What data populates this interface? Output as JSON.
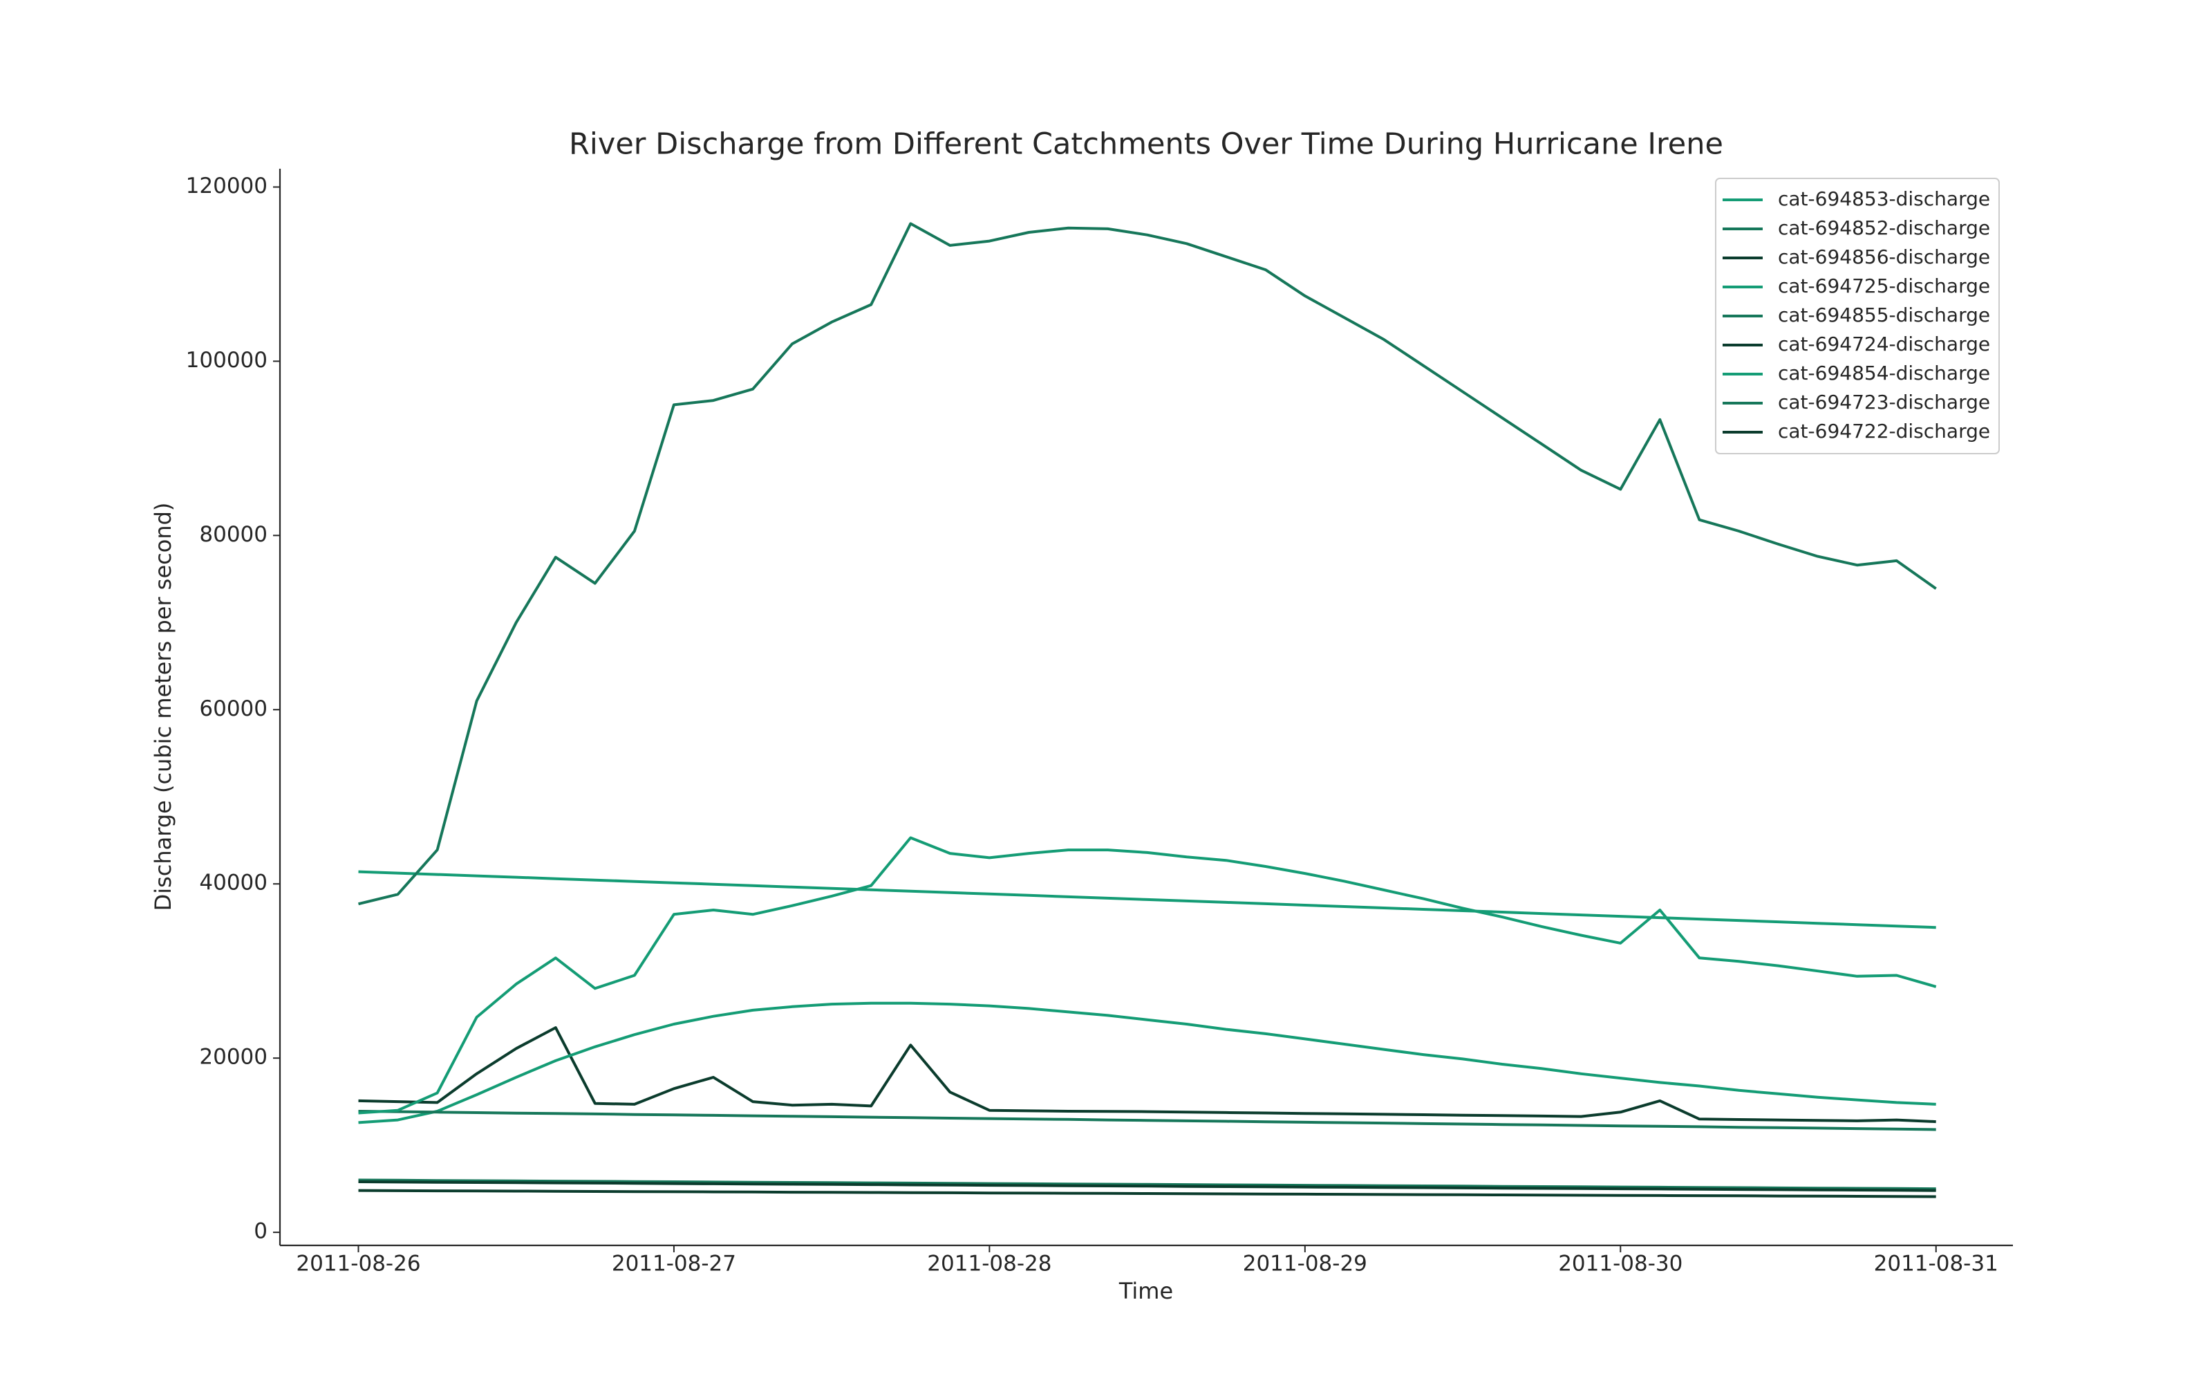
{
  "chart_data": {
    "type": "line",
    "title": "River Discharge from Different Catchments Over Time During Hurricane Irene",
    "xlabel": "Time",
    "ylabel": "Discharge (cubic meters per second)",
    "x": [
      "2011-08-26T00:00",
      "2011-08-26T03:00",
      "2011-08-26T06:00",
      "2011-08-26T09:00",
      "2011-08-26T12:00",
      "2011-08-26T15:00",
      "2011-08-26T18:00",
      "2011-08-26T21:00",
      "2011-08-27T00:00",
      "2011-08-27T03:00",
      "2011-08-27T06:00",
      "2011-08-27T09:00",
      "2011-08-27T12:00",
      "2011-08-27T15:00",
      "2011-08-27T18:00",
      "2011-08-27T21:00",
      "2011-08-28T00:00",
      "2011-08-28T03:00",
      "2011-08-28T06:00",
      "2011-08-28T09:00",
      "2011-08-28T12:00",
      "2011-08-28T15:00",
      "2011-08-28T18:00",
      "2011-08-28T21:00",
      "2011-08-29T00:00",
      "2011-08-29T03:00",
      "2011-08-29T06:00",
      "2011-08-29T09:00",
      "2011-08-29T12:00",
      "2011-08-29T15:00",
      "2011-08-29T18:00",
      "2011-08-29T21:00",
      "2011-08-30T00:00",
      "2011-08-30T03:00",
      "2011-08-30T06:00",
      "2011-08-30T09:00",
      "2011-08-30T12:00",
      "2011-08-30T15:00",
      "2011-08-30T18:00",
      "2011-08-30T21:00",
      "2011-08-31T00:00"
    ],
    "series": [
      {
        "name": "cat-694853-discharge",
        "color": "#149c75",
        "values": [
          41400,
          41240,
          41080,
          40920,
          40760,
          40600,
          40440,
          40280,
          40120,
          39960,
          39800,
          39640,
          39480,
          39320,
          39160,
          39000,
          38840,
          38680,
          38520,
          38360,
          38200,
          38040,
          37880,
          37720,
          37560,
          37400,
          37240,
          37080,
          36920,
          36760,
          36600,
          36440,
          36280,
          36120,
          35960,
          35800,
          35640,
          35480,
          35320,
          35160,
          35000
        ]
      },
      {
        "name": "cat-694852-discharge",
        "color": "#16775a",
        "values": [
          37700,
          38800,
          43900,
          61000,
          70000,
          77500,
          74500,
          80500,
          95000,
          95500,
          96800,
          102000,
          104500,
          106500,
          115800,
          113300,
          113800,
          114800,
          115300,
          115200,
          114500,
          113500,
          112000,
          110500,
          107500,
          105000,
          102500,
          99500,
          96500,
          93500,
          90500,
          87500,
          85300,
          93300,
          81800,
          80500,
          79000,
          77600,
          76600,
          77100,
          73900
        ]
      },
      {
        "name": "cat-694856-discharge",
        "color": "#0b3c2d",
        "values": [
          15100,
          15000,
          14900,
          18200,
          21100,
          23500,
          14800,
          14700,
          16500,
          17800,
          15000,
          14600,
          14700,
          14500,
          21500,
          16100,
          14000,
          13950,
          13900,
          13880,
          13850,
          13800,
          13750,
          13700,
          13650,
          13600,
          13550,
          13500,
          13450,
          13400,
          13350,
          13300,
          13800,
          15100,
          13000,
          12950,
          12900,
          12850,
          12800,
          12900,
          12700
        ]
      },
      {
        "name": "cat-694725-discharge",
        "color": "#149c75",
        "values": [
          12600,
          12900,
          13900,
          15800,
          17800,
          19700,
          21300,
          22700,
          23900,
          24800,
          25500,
          25900,
          26200,
          26300,
          26300,
          26200,
          26000,
          25700,
          25300,
          24900,
          24400,
          23900,
          23300,
          22800,
          22200,
          21600,
          21000,
          20400,
          19900,
          19300,
          18800,
          18200,
          17700,
          17200,
          16800,
          16300,
          15900,
          15500,
          15200,
          14900,
          14700
        ]
      },
      {
        "name": "cat-694855-discharge",
        "color": "#16775a",
        "values": [
          13900,
          13850,
          13800,
          13740,
          13690,
          13640,
          13590,
          13530,
          13480,
          13430,
          13380,
          13320,
          13270,
          13220,
          13170,
          13110,
          13060,
          13010,
          12960,
          12900,
          12850,
          12800,
          12750,
          12690,
          12640,
          12590,
          12540,
          12480,
          12430,
          12380,
          12330,
          12270,
          12220,
          12170,
          12120,
          12060,
          12010,
          11960,
          11910,
          11850,
          11800
        ]
      },
      {
        "name": "cat-694724-discharge",
        "color": "#0b3c2d",
        "values": [
          4800,
          4783,
          4765,
          4748,
          4730,
          4713,
          4695,
          4678,
          4660,
          4643,
          4625,
          4608,
          4590,
          4573,
          4555,
          4538,
          4520,
          4503,
          4485,
          4468,
          4450,
          4433,
          4415,
          4398,
          4380,
          4363,
          4345,
          4328,
          4310,
          4293,
          4275,
          4258,
          4240,
          4223,
          4205,
          4188,
          4170,
          4153,
          4135,
          4118,
          4100
        ]
      },
      {
        "name": "cat-694854-discharge",
        "color": "#149c75",
        "values": [
          13700,
          14000,
          16000,
          24700,
          28500,
          31500,
          28000,
          29500,
          36500,
          37000,
          36500,
          37500,
          38600,
          39800,
          45300,
          43500,
          43000,
          43500,
          43900,
          43900,
          43600,
          43100,
          42700,
          42000,
          41200,
          40300,
          39300,
          38300,
          37200,
          36200,
          35100,
          34100,
          33200,
          37000,
          31500,
          31100,
          30600,
          30000,
          29400,
          29500,
          28200
        ]
      },
      {
        "name": "cat-694723-discharge",
        "color": "#16775a",
        "values": [
          6000,
          5975,
          5950,
          5925,
          5900,
          5875,
          5850,
          5825,
          5800,
          5775,
          5750,
          5725,
          5700,
          5675,
          5650,
          5625,
          5600,
          5575,
          5550,
          5525,
          5500,
          5475,
          5450,
          5425,
          5400,
          5375,
          5350,
          5325,
          5300,
          5275,
          5250,
          5225,
          5200,
          5175,
          5150,
          5125,
          5100,
          5075,
          5050,
          5025,
          5000
        ]
      },
      {
        "name": "cat-694722-discharge",
        "color": "#0b3c2d",
        "values": [
          5800,
          5775,
          5750,
          5725,
          5700,
          5675,
          5650,
          5625,
          5600,
          5575,
          5550,
          5525,
          5500,
          5475,
          5450,
          5425,
          5400,
          5375,
          5350,
          5325,
          5300,
          5275,
          5250,
          5225,
          5200,
          5175,
          5150,
          5125,
          5100,
          5075,
          5050,
          5025,
          5000,
          4975,
          4950,
          4925,
          4900,
          4875,
          4850,
          4825,
          4800
        ]
      }
    ],
    "xlim": [
      "2011-08-25T18:02",
      "2011-08-31T05:51"
    ],
    "xticks": [
      "2011-08-26",
      "2011-08-27",
      "2011-08-28",
      "2011-08-29",
      "2011-08-30",
      "2011-08-31"
    ],
    "ylim": [
      -1500,
      122100
    ],
    "yticks": [
      0,
      20000,
      40000,
      60000,
      80000,
      100000,
      120000
    ],
    "grid": false,
    "legend": "upper right"
  }
}
